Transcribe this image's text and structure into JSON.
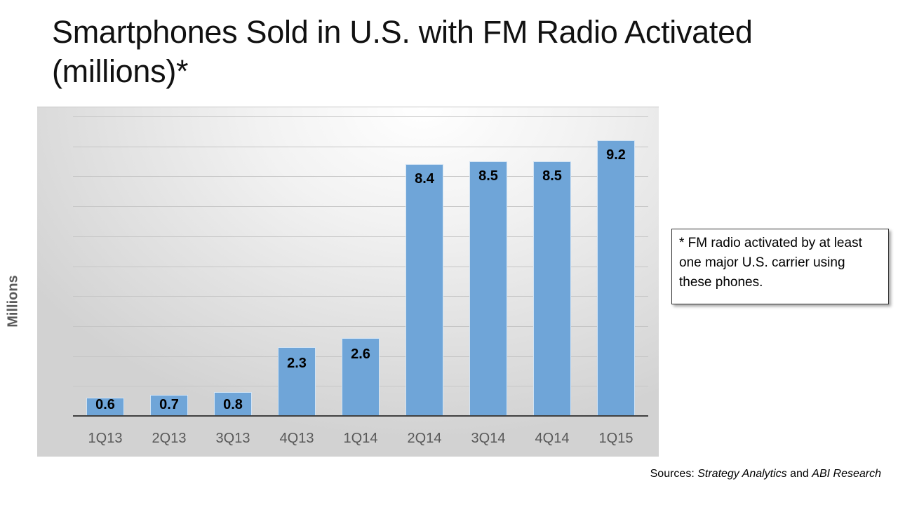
{
  "title": "Smartphones Sold in U.S. with FM Radio Activated (millions)*",
  "note": "* FM radio activated by at least one major U.S. carrier using these phones.",
  "sources": {
    "prefix": "Sources: ",
    "source1": "Strategy Analytics",
    "joiner": " and ",
    "source2": "ABI Research"
  },
  "colors": {
    "bar": "#6fa5d8",
    "grid": "#c6c6c6",
    "axis_text": "#595959"
  },
  "chart_data": {
    "type": "bar",
    "title": "Smartphones Sold in U.S. with FM Radio Activated (millions)*",
    "xlabel": "",
    "ylabel": "Millions",
    "categories": [
      "1Q13",
      "2Q13",
      "3Q13",
      "4Q13",
      "1Q14",
      "2Q14",
      "3Q14",
      "4Q14",
      "1Q15"
    ],
    "values": [
      0.6,
      0.7,
      0.8,
      2.3,
      2.6,
      8.4,
      8.5,
      8.5,
      9.2
    ],
    "ylim": [
      0,
      10
    ],
    "grid": true,
    "y_tick_labels_shown": false,
    "legend": null,
    "data_labels": true
  }
}
